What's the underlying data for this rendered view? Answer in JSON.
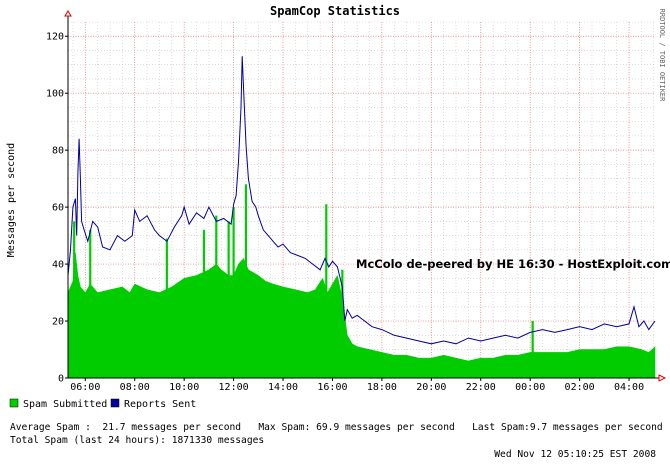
{
  "chart_data": {
    "type": "area",
    "title": "SpamCop Statistics",
    "ylabel": "Messages per second",
    "xlabel": "",
    "watermark": "RRDTOOL / TOBI OETIKER",
    "ylim": [
      0,
      125
    ],
    "yticks": [
      0,
      20,
      40,
      60,
      80,
      100,
      120
    ],
    "xlim": [
      5.3,
      29.05
    ],
    "xticks": [
      {
        "x": 6,
        "label": "06:00"
      },
      {
        "x": 8,
        "label": "08:00"
      },
      {
        "x": 10,
        "label": "10:00"
      },
      {
        "x": 12,
        "label": "12:00"
      },
      {
        "x": 14,
        "label": "14:00"
      },
      {
        "x": 16,
        "label": "16:00"
      },
      {
        "x": 18,
        "label": "18:00"
      },
      {
        "x": 20,
        "label": "20:00"
      },
      {
        "x": 22,
        "label": "22:00"
      },
      {
        "x": 24,
        "label": "00:00"
      },
      {
        "x": 26,
        "label": "02:00"
      },
      {
        "x": 28,
        "label": "04:00"
      }
    ],
    "grid": true,
    "legend_position": "bottom-left",
    "annotation": "McColo de-peered  by HE 16:30 - HostExploit.com",
    "series": [
      {
        "name": "Spam Submitted",
        "color": "#00cc00",
        "style": "area",
        "points": [
          [
            5.3,
            30
          ],
          [
            5.5,
            34
          ],
          [
            5.6,
            44
          ],
          [
            5.7,
            36
          ],
          [
            5.8,
            32
          ],
          [
            6.0,
            30
          ],
          [
            6.2,
            33
          ],
          [
            6.5,
            30
          ],
          [
            7.0,
            31
          ],
          [
            7.5,
            32
          ],
          [
            7.8,
            30
          ],
          [
            8.0,
            33
          ],
          [
            8.5,
            31
          ],
          [
            9.0,
            30
          ],
          [
            9.5,
            32
          ],
          [
            10.0,
            35
          ],
          [
            10.5,
            36
          ],
          [
            11.0,
            38
          ],
          [
            11.3,
            40
          ],
          [
            11.5,
            38
          ],
          [
            11.8,
            36
          ],
          [
            12.0,
            36
          ],
          [
            12.2,
            40
          ],
          [
            12.4,
            42
          ],
          [
            12.6,
            38
          ],
          [
            12.8,
            37
          ],
          [
            13.0,
            36
          ],
          [
            13.3,
            34
          ],
          [
            13.6,
            33
          ],
          [
            14.0,
            32
          ],
          [
            14.5,
            31
          ],
          [
            15.0,
            30
          ],
          [
            15.3,
            31
          ],
          [
            15.6,
            35
          ],
          [
            15.8,
            30
          ],
          [
            16.0,
            33
          ],
          [
            16.2,
            36
          ],
          [
            16.4,
            28
          ],
          [
            16.6,
            15
          ],
          [
            16.8,
            12
          ],
          [
            17.0,
            11
          ],
          [
            17.5,
            10
          ],
          [
            18.0,
            9
          ],
          [
            18.5,
            8
          ],
          [
            19.0,
            8
          ],
          [
            19.5,
            7
          ],
          [
            20.0,
            7
          ],
          [
            20.5,
            8
          ],
          [
            21.0,
            7
          ],
          [
            21.5,
            6
          ],
          [
            22.0,
            7
          ],
          [
            22.5,
            7
          ],
          [
            23.0,
            8
          ],
          [
            23.5,
            8
          ],
          [
            24.0,
            9
          ],
          [
            24.5,
            9
          ],
          [
            25.0,
            9
          ],
          [
            25.5,
            9
          ],
          [
            26.0,
            10
          ],
          [
            26.5,
            10
          ],
          [
            27.0,
            10
          ],
          [
            27.5,
            11
          ],
          [
            28.0,
            11
          ],
          [
            28.5,
            10
          ],
          [
            28.8,
            9
          ],
          [
            29.05,
            11
          ]
        ],
        "spikes": [
          [
            5.55,
            55
          ],
          [
            6.2,
            52
          ],
          [
            9.3,
            49
          ],
          [
            10.8,
            52
          ],
          [
            11.3,
            57
          ],
          [
            11.8,
            55
          ],
          [
            12.0,
            60
          ],
          [
            12.5,
            68
          ],
          [
            15.75,
            61
          ],
          [
            16.4,
            38
          ],
          [
            24.1,
            20
          ]
        ]
      },
      {
        "name": "Reports Sent",
        "color": "#00009f",
        "style": "line",
        "points": [
          [
            5.3,
            36
          ],
          [
            5.4,
            45
          ],
          [
            5.5,
            60
          ],
          [
            5.6,
            63
          ],
          [
            5.65,
            50
          ],
          [
            5.7,
            72
          ],
          [
            5.75,
            84
          ],
          [
            5.8,
            70
          ],
          [
            5.85,
            55
          ],
          [
            5.95,
            52
          ],
          [
            6.1,
            48
          ],
          [
            6.3,
            55
          ],
          [
            6.5,
            53
          ],
          [
            6.7,
            46
          ],
          [
            7.0,
            45
          ],
          [
            7.3,
            50
          ],
          [
            7.6,
            48
          ],
          [
            7.9,
            50
          ],
          [
            8.0,
            59
          ],
          [
            8.2,
            55
          ],
          [
            8.5,
            57
          ],
          [
            8.8,
            52
          ],
          [
            9.0,
            50
          ],
          [
            9.3,
            48
          ],
          [
            9.6,
            53
          ],
          [
            9.9,
            57
          ],
          [
            10.0,
            60
          ],
          [
            10.2,
            54
          ],
          [
            10.5,
            58
          ],
          [
            10.8,
            56
          ],
          [
            11.0,
            60
          ],
          [
            11.3,
            55
          ],
          [
            11.6,
            56
          ],
          [
            11.9,
            54
          ],
          [
            12.0,
            61
          ],
          [
            12.1,
            64
          ],
          [
            12.2,
            76
          ],
          [
            12.3,
            95
          ],
          [
            12.35,
            113
          ],
          [
            12.42,
            98
          ],
          [
            12.5,
            82
          ],
          [
            12.6,
            70
          ],
          [
            12.75,
            62
          ],
          [
            12.9,
            60
          ],
          [
            13.0,
            57
          ],
          [
            13.2,
            52
          ],
          [
            13.4,
            50
          ],
          [
            13.6,
            48
          ],
          [
            13.8,
            46
          ],
          [
            14.0,
            47
          ],
          [
            14.3,
            44
          ],
          [
            14.6,
            43
          ],
          [
            14.9,
            42
          ],
          [
            15.2,
            40
          ],
          [
            15.5,
            38
          ],
          [
            15.7,
            42
          ],
          [
            15.85,
            39
          ],
          [
            16.0,
            41
          ],
          [
            16.2,
            39
          ],
          [
            16.4,
            32
          ],
          [
            16.5,
            20
          ],
          [
            16.6,
            24
          ],
          [
            16.8,
            21
          ],
          [
            17.0,
            22
          ],
          [
            17.3,
            20
          ],
          [
            17.6,
            18
          ],
          [
            18.0,
            17
          ],
          [
            18.5,
            15
          ],
          [
            19.0,
            14
          ],
          [
            19.5,
            13
          ],
          [
            20.0,
            12
          ],
          [
            20.5,
            13
          ],
          [
            21.0,
            12
          ],
          [
            21.5,
            14
          ],
          [
            22.0,
            13
          ],
          [
            22.5,
            14
          ],
          [
            23.0,
            15
          ],
          [
            23.5,
            14
          ],
          [
            24.0,
            16
          ],
          [
            24.5,
            17
          ],
          [
            25.0,
            16
          ],
          [
            25.5,
            17
          ],
          [
            26.0,
            18
          ],
          [
            26.5,
            17
          ],
          [
            27.0,
            19
          ],
          [
            27.5,
            18
          ],
          [
            28.0,
            19
          ],
          [
            28.2,
            25
          ],
          [
            28.4,
            18
          ],
          [
            28.6,
            20
          ],
          [
            28.8,
            17
          ],
          [
            29.05,
            20
          ]
        ]
      }
    ],
    "stats_lines": [
      "Average Spam :  21.7 messages per second   Max Spam: 69.9 messages per second   Last Spam:9.7 messages per second",
      "Total Spam (last 24 hours): 1871330 messages"
    ],
    "timestamp": "Wed Nov 12 05:10:25 EST 2008"
  }
}
